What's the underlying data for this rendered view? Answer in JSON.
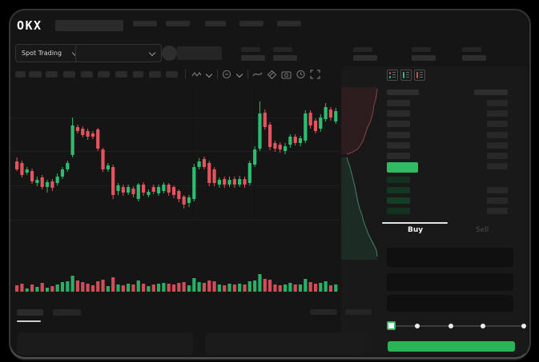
{
  "app": {
    "brand": "OKX"
  },
  "subheader": {
    "market_selector_label": "Spot Trading"
  },
  "trade": {
    "buy_tab": "Buy",
    "sell_tab": "Sell"
  },
  "colors": {
    "app_bg": "#151515",
    "panel_bg": "#191919",
    "candle_up": "#2EBD70",
    "candle_down": "#E4535E",
    "last_price_bar": "#2FBA63",
    "buy_button": "#2AB457",
    "depth_ask_line": "#a05058",
    "depth_bid_line": "#4e9b82",
    "tab_indicator": "#e6e6e6"
  },
  "orderbook": {
    "ask_rows": 6,
    "bid_rows": 4,
    "bid_row_has_amount": [
      false,
      true,
      true,
      true
    ],
    "bid_row_tints": [
      "#14311f",
      "#143722",
      "#153c25",
      "#123320"
    ]
  },
  "chart_data": {
    "type": "candlestick",
    "title": "",
    "xlabel": "",
    "ylabel": "",
    "value_range": [
      40,
      195
    ],
    "grid": "horizontal-faint",
    "candles_ohlc_note": "arrays are [open, high, low, close] in relative price units",
    "candles": [
      [
        107,
        112,
        95,
        97
      ],
      [
        105,
        108,
        87,
        90
      ],
      [
        93,
        100,
        90,
        97
      ],
      [
        95,
        98,
        79,
        82
      ],
      [
        80,
        88,
        76,
        84
      ],
      [
        87,
        90,
        72,
        75
      ],
      [
        75,
        84,
        68,
        81
      ],
      [
        82,
        85,
        70,
        74
      ],
      [
        80,
        92,
        77,
        88
      ],
      [
        88,
        100,
        85,
        97
      ],
      [
        97,
        108,
        94,
        105
      ],
      [
        115,
        162,
        112,
        152
      ],
      [
        150,
        153,
        142,
        145
      ],
      [
        148,
        151,
        137,
        140
      ],
      [
        145,
        148,
        134,
        138
      ],
      [
        142,
        145,
        135,
        138
      ],
      [
        147,
        149,
        120,
        123
      ],
      [
        122,
        124,
        94,
        97
      ],
      [
        97,
        105,
        94,
        102
      ],
      [
        100,
        103,
        60,
        65
      ],
      [
        70,
        80,
        65,
        77
      ],
      [
        75,
        78,
        64,
        68
      ],
      [
        68,
        78,
        65,
        75
      ],
      [
        73,
        76,
        62,
        66
      ],
      [
        60,
        80,
        57,
        78
      ],
      [
        78,
        81,
        64,
        68
      ],
      [
        65,
        72,
        62,
        69
      ],
      [
        75,
        78,
        66,
        69
      ],
      [
        67,
        78,
        64,
        75
      ],
      [
        70,
        81,
        67,
        78
      ],
      [
        78,
        80,
        64,
        68
      ],
      [
        75,
        77,
        61,
        65
      ],
      [
        70,
        72,
        56,
        60
      ],
      [
        63,
        65,
        48,
        53
      ],
      [
        55,
        65,
        50,
        62
      ],
      [
        60,
        104,
        57,
        100
      ],
      [
        100,
        111,
        97,
        107
      ],
      [
        110,
        113,
        97,
        100
      ],
      [
        105,
        108,
        76,
        80
      ],
      [
        97,
        100,
        76,
        80
      ],
      [
        78,
        87,
        74,
        84
      ],
      [
        85,
        88,
        74,
        78
      ],
      [
        78,
        88,
        75,
        84
      ],
      [
        85,
        88,
        74,
        78
      ],
      [
        78,
        89,
        75,
        85
      ],
      [
        85,
        88,
        74,
        78
      ],
      [
        80,
        108,
        77,
        105
      ],
      [
        103,
        126,
        100,
        122
      ],
      [
        123,
        182,
        120,
        167
      ],
      [
        168,
        172,
        147,
        150
      ],
      [
        153,
        156,
        121,
        125
      ],
      [
        130,
        133,
        119,
        123
      ],
      [
        128,
        131,
        118,
        122
      ],
      [
        120,
        130,
        116,
        126
      ],
      [
        128,
        141,
        124,
        138
      ],
      [
        138,
        141,
        127,
        130
      ],
      [
        130,
        139,
        126,
        136
      ],
      [
        133,
        171,
        130,
        167
      ],
      [
        168,
        171,
        148,
        152
      ],
      [
        158,
        161,
        142,
        145
      ],
      [
        148,
        166,
        144,
        162
      ],
      [
        160,
        180,
        157,
        175
      ],
      [
        172,
        175,
        158,
        162
      ],
      [
        157,
        174,
        154,
        170
      ]
    ],
    "volumes": [
      8,
      10,
      4,
      9,
      6,
      11,
      5,
      7,
      9,
      12,
      13,
      20,
      14,
      12,
      10,
      8,
      13,
      15,
      7,
      18,
      9,
      8,
      10,
      9,
      14,
      10,
      7,
      9,
      10,
      11,
      10,
      9,
      11,
      12,
      8,
      17,
      12,
      11,
      14,
      13,
      9,
      8,
      10,
      9,
      10,
      9,
      13,
      14,
      22,
      16,
      15,
      9,
      8,
      9,
      11,
      9,
      9,
      16,
      12,
      10,
      11,
      13,
      8,
      9
    ],
    "depth_profile": {
      "asks_curve": [
        [
          45,
          2
        ],
        [
          44,
          10
        ],
        [
          43,
          16
        ],
        [
          41,
          22
        ],
        [
          40,
          30
        ],
        [
          38,
          38
        ],
        [
          36,
          44
        ],
        [
          33,
          50
        ],
        [
          31,
          56
        ],
        [
          29,
          62
        ],
        [
          27,
          68
        ],
        [
          24,
          73
        ],
        [
          20,
          78
        ],
        [
          13,
          82
        ],
        [
          7,
          84
        ]
      ],
      "bids_curve": [
        [
          7,
          88
        ],
        [
          9,
          94
        ],
        [
          11,
          100
        ],
        [
          13,
          108
        ],
        [
          15,
          116
        ],
        [
          17,
          124
        ],
        [
          19,
          134
        ],
        [
          21,
          144
        ],
        [
          23,
          152
        ],
        [
          26,
          160
        ],
        [
          28,
          168
        ],
        [
          31,
          176
        ],
        [
          34,
          184
        ],
        [
          38,
          192
        ],
        [
          41,
          198
        ],
        [
          44,
          204
        ],
        [
          45,
          212
        ]
      ]
    }
  }
}
